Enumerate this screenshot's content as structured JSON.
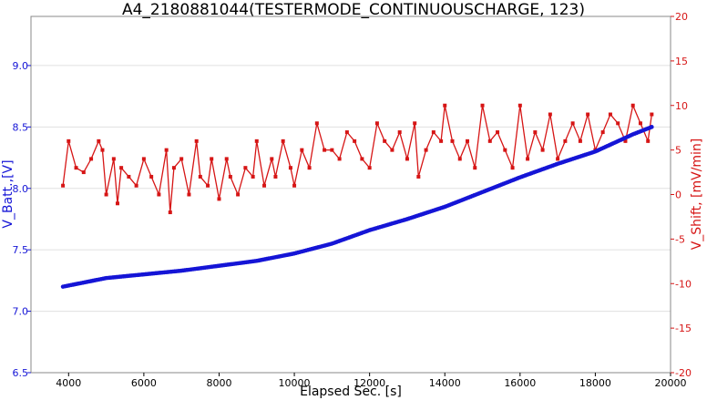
{
  "chart_data": {
    "type": "scatter",
    "title": "A4_2180881044(TESTERMODE_CONTINUOUSCHARGE, 123)",
    "xlabel": "Elapsed Sec. [s]",
    "ylabel_left": "V_Batt.,[V]",
    "ylabel_right": "V_Shift, [mV/min]",
    "xlim": [
      3000,
      20000
    ],
    "ylim_left": [
      6.5,
      9.4
    ],
    "ylim_right": [
      -20,
      20
    ],
    "x_ticks": [
      4000,
      6000,
      8000,
      10000,
      12000,
      14000,
      16000,
      18000,
      20000
    ],
    "y_ticks_left": [
      6.5,
      7.0,
      7.5,
      8.0,
      8.5,
      9.0
    ],
    "y_ticks_right": [
      -20,
      -15,
      -10,
      -5,
      0,
      5,
      10,
      15,
      20
    ],
    "grid": true,
    "colors": {
      "left": "#1515d6",
      "right": "#d61515"
    },
    "series": [
      {
        "axis": "left",
        "points": [
          [
            3850,
            7.2
          ],
          [
            5000,
            7.27
          ],
          [
            6000,
            7.3
          ],
          [
            7000,
            7.33
          ],
          [
            8000,
            7.37
          ],
          [
            9000,
            7.41
          ],
          [
            10000,
            7.47
          ],
          [
            11000,
            7.55
          ],
          [
            12000,
            7.66
          ],
          [
            13000,
            7.75
          ],
          [
            14000,
            7.85
          ],
          [
            15000,
            7.97
          ],
          [
            16000,
            8.09
          ],
          [
            17000,
            8.2
          ],
          [
            18000,
            8.3
          ],
          [
            19000,
            8.44
          ],
          [
            19500,
            8.5
          ]
        ]
      },
      {
        "axis": "right",
        "points": [
          [
            3850,
            1
          ],
          [
            4000,
            6
          ],
          [
            4200,
            3
          ],
          [
            4400,
            2.5
          ],
          [
            4600,
            4
          ],
          [
            4800,
            6
          ],
          [
            4900,
            5
          ],
          [
            5000,
            0
          ],
          [
            5200,
            4
          ],
          [
            5300,
            -1
          ],
          [
            5400,
            3
          ],
          [
            5600,
            2
          ],
          [
            5800,
            1
          ],
          [
            6000,
            4
          ],
          [
            6200,
            2
          ],
          [
            6400,
            0
          ],
          [
            6600,
            5
          ],
          [
            6700,
            -2
          ],
          [
            6800,
            3
          ],
          [
            7000,
            4
          ],
          [
            7200,
            0
          ],
          [
            7400,
            6
          ],
          [
            7500,
            2
          ],
          [
            7700,
            1
          ],
          [
            7800,
            4
          ],
          [
            8000,
            -0.5
          ],
          [
            8200,
            4
          ],
          [
            8300,
            2
          ],
          [
            8500,
            0
          ],
          [
            8700,
            3
          ],
          [
            8900,
            2
          ],
          [
            9000,
            6
          ],
          [
            9200,
            1
          ],
          [
            9400,
            4
          ],
          [
            9500,
            2
          ],
          [
            9700,
            6
          ],
          [
            9900,
            3
          ],
          [
            10000,
            1
          ],
          [
            10200,
            5
          ],
          [
            10400,
            3
          ],
          [
            10600,
            8
          ],
          [
            10800,
            5
          ],
          [
            11000,
            5
          ],
          [
            11200,
            4
          ],
          [
            11400,
            7
          ],
          [
            11600,
            6
          ],
          [
            11800,
            4
          ],
          [
            12000,
            3
          ],
          [
            12200,
            8
          ],
          [
            12400,
            6
          ],
          [
            12600,
            5
          ],
          [
            12800,
            7
          ],
          [
            13000,
            4
          ],
          [
            13200,
            8
          ],
          [
            13300,
            2
          ],
          [
            13500,
            5
          ],
          [
            13700,
            7
          ],
          [
            13900,
            6
          ],
          [
            14000,
            10
          ],
          [
            14200,
            6
          ],
          [
            14400,
            4
          ],
          [
            14600,
            6
          ],
          [
            14800,
            3
          ],
          [
            15000,
            10
          ],
          [
            15200,
            6
          ],
          [
            15400,
            7
          ],
          [
            15600,
            5
          ],
          [
            15800,
            3
          ],
          [
            16000,
            10
          ],
          [
            16200,
            4
          ],
          [
            16400,
            7
          ],
          [
            16600,
            5
          ],
          [
            16800,
            9
          ],
          [
            17000,
            4
          ],
          [
            17200,
            6
          ],
          [
            17400,
            8
          ],
          [
            17600,
            6
          ],
          [
            17800,
            9
          ],
          [
            18000,
            5
          ],
          [
            18200,
            7
          ],
          [
            18400,
            9
          ],
          [
            18600,
            8
          ],
          [
            18800,
            6
          ],
          [
            19000,
            10
          ],
          [
            19200,
            8
          ],
          [
            19400,
            6
          ],
          [
            19500,
            9
          ]
        ]
      }
    ]
  }
}
